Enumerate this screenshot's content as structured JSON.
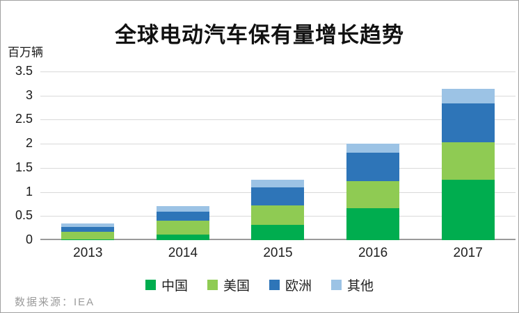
{
  "title": "全球电动汽车保有量增长趋势",
  "y_axis_unit": "百万辆",
  "source_note": "数据来源：IEA",
  "colors": {
    "china": "#00AD4F",
    "usa": "#8FCB53",
    "europe": "#2E75B8",
    "others": "#9CC3E5",
    "gridline": "#d9d9d9",
    "axis": "#9a9a9a"
  },
  "legend": [
    "中国",
    "美国",
    "欧洲",
    "其他"
  ],
  "chart_data": {
    "type": "bar",
    "stacked": true,
    "title": "全球电动汽车保有量增长趋势",
    "ylabel": "百万辆",
    "categories": [
      "2013",
      "2014",
      "2015",
      "2016",
      "2017"
    ],
    "series": [
      {
        "key": "china",
        "name": "中国",
        "color": "#00AD4F",
        "values": [
          0.02,
          0.11,
          0.32,
          0.66,
          1.25
        ]
      },
      {
        "key": "usa",
        "name": "美国",
        "color": "#8FCB53",
        "values": [
          0.16,
          0.29,
          0.4,
          0.57,
          0.78
        ]
      },
      {
        "key": "europe",
        "name": "欧洲",
        "color": "#2E75B8",
        "values": [
          0.1,
          0.19,
          0.37,
          0.58,
          0.81
        ]
      },
      {
        "key": "others",
        "name": "其他",
        "color": "#9CC3E5",
        "values": [
          0.07,
          0.11,
          0.16,
          0.19,
          0.3
        ]
      }
    ],
    "ylim": [
      0,
      3.5
    ],
    "yticks": [
      "0",
      "0.5",
      "1",
      "1.5",
      "2",
      "2.5",
      "3",
      "3.5"
    ],
    "grid": true,
    "legend_position": "bottom"
  }
}
